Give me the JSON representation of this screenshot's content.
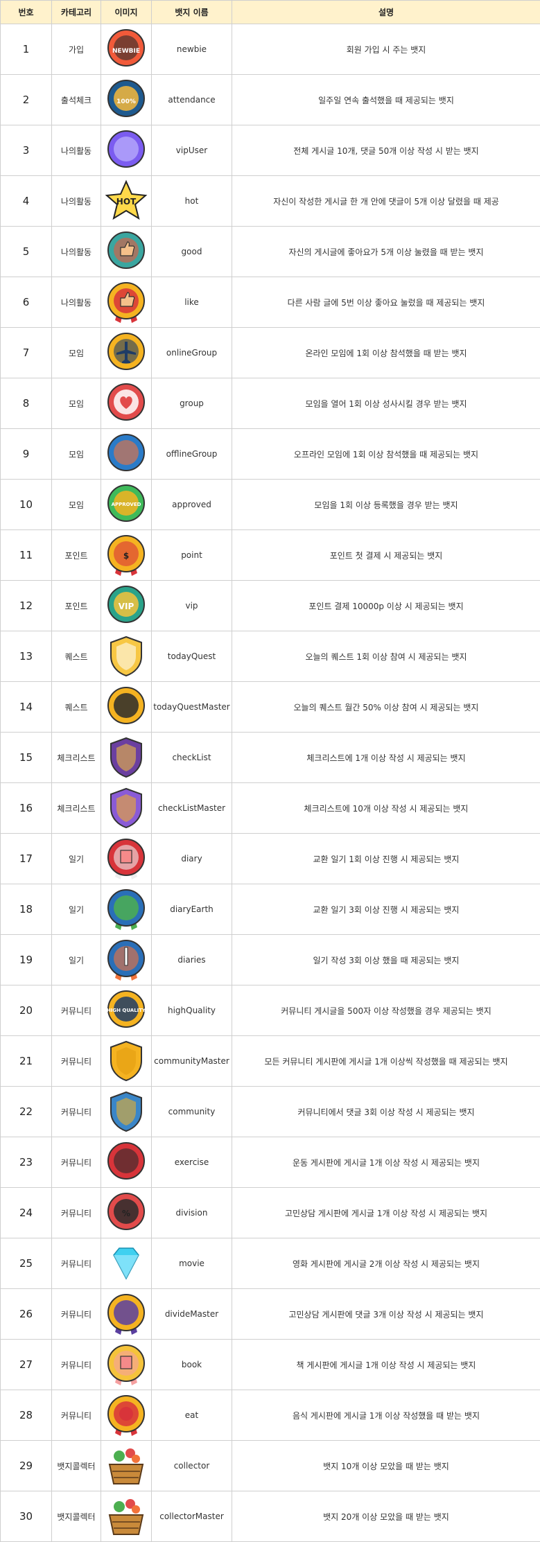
{
  "headers": [
    "번호",
    "카테고리",
    "이미지",
    "뱃지 이름",
    "설명"
  ],
  "rows": [
    {
      "no": "1",
      "category": "가입",
      "name": "newbie",
      "desc": "회원 가입 시 주는 뱃지",
      "icon": "newbie-badge-icon",
      "text": "NEWBIE",
      "colors": [
        "#f15a3a",
        "#2b2b2b"
      ]
    },
    {
      "no": "2",
      "category": "출석체크",
      "name": "attendance",
      "desc": "일주일 연속 출석했을 때 제공되는 뱃지",
      "icon": "attendance-badge-icon",
      "text": "100%",
      "colors": [
        "#1e5a8f",
        "#f6b93b"
      ]
    },
    {
      "no": "3",
      "category": "나의활동",
      "name": "vipUser",
      "desc": "전체 게시글 10개, 댓글 50개 이상 작성 시 받는 뱃지",
      "icon": "vip-gem-badge-icon",
      "text": "",
      "colors": [
        "#7b5cf0",
        "#c9c1ff"
      ]
    },
    {
      "no": "4",
      "category": "나의활동",
      "name": "hot",
      "desc": "자신이 작성한 게시글 한 개 안에 댓글이 5개 이상 달렸을 때 제공",
      "icon": "hot-star-badge-icon",
      "text": "HOT",
      "colors": [
        "#ffd94a",
        "#222222"
      ]
    },
    {
      "no": "5",
      "category": "나의활동",
      "name": "good",
      "desc": "자신의 게시글에 좋아요가 5개 이상 눌렸을 때 받는 뱃지",
      "icon": "thumbs-up-teal-badge-icon",
      "text": "",
      "colors": [
        "#3aa6a0",
        "#e8593c"
      ]
    },
    {
      "no": "6",
      "category": "나의활동",
      "name": "like",
      "desc": "다른 사람 글에 5번 이상 좋아요 눌렀을 때 제공되는 뱃지",
      "icon": "thumbs-up-gold-badge-icon",
      "text": "",
      "colors": [
        "#f5b321",
        "#d8343a"
      ]
    },
    {
      "no": "7",
      "category": "모임",
      "name": "onlineGroup",
      "desc": "온라인 모임에 1회 이상 참석했을 때 받는 뱃지",
      "icon": "airplane-badge-icon",
      "text": "",
      "colors": [
        "#f5b321",
        "#1f3c66"
      ]
    },
    {
      "no": "8",
      "category": "모임",
      "name": "group",
      "desc": "모임을 열어 1회 이상 성사시킬 경우 받는 뱃지",
      "icon": "heart-badge-icon",
      "text": "",
      "colors": [
        "#e24b4b",
        "#ffffff"
      ]
    },
    {
      "no": "9",
      "category": "모임",
      "name": "offlineGroup",
      "desc": "오프라인 모임에 1회 이상 참석했을 때 제공되는 뱃지",
      "icon": "sneaker-badge-icon",
      "text": "",
      "colors": [
        "#2a7bc8",
        "#f2733a"
      ]
    },
    {
      "no": "10",
      "category": "모임",
      "name": "approved",
      "desc": "모임을 1회 이상 등록했을 경우 받는 뱃지",
      "icon": "approved-badge-icon",
      "text": "APPROVED",
      "colors": [
        "#3fba5a",
        "#f5b321"
      ]
    },
    {
      "no": "11",
      "category": "포인트",
      "name": "point",
      "desc": "포인트 첫 결제 시 제공되는 뱃지",
      "icon": "dollar-medal-badge-icon",
      "text": "$",
      "colors": [
        "#f5b321",
        "#d8343a"
      ]
    },
    {
      "no": "12",
      "category": "포인트",
      "name": "vip",
      "desc": "포인트 결제 10000p 이상 시 제공되는 뱃지",
      "icon": "vip-crown-badge-icon",
      "text": "VIP",
      "colors": [
        "#2aa38a",
        "#f5c33b"
      ]
    },
    {
      "no": "13",
      "category": "퀘스트",
      "name": "todayQuest",
      "desc": "오늘의 퀘스트 1회 이상 참여 시 제공되는 뱃지",
      "icon": "gold-shield-star-icon",
      "text": "",
      "colors": [
        "#f7c744",
        "#ffffff"
      ]
    },
    {
      "no": "14",
      "category": "퀘스트",
      "name": "todayQuestMaster",
      "desc": "오늘의 퀘스트 월간 50% 이상 참여 시 제공되는 뱃지",
      "icon": "star-gear-badge-icon",
      "text": "",
      "colors": [
        "#f5b321",
        "#2b2b2b"
      ]
    },
    {
      "no": "15",
      "category": "체크리스트",
      "name": "checkList",
      "desc": "체크리스트에 1개 이상 작성 시 제공되는 뱃지",
      "icon": "purple-shield-badge-icon",
      "text": "",
      "colors": [
        "#6b3fa0",
        "#f5c33b"
      ]
    },
    {
      "no": "16",
      "category": "체크리스트",
      "name": "checkListMaster",
      "desc": "체크리스트에 10개 이상 작성 시 제공되는 뱃지",
      "icon": "purple-star-shield-icon",
      "text": "",
      "colors": [
        "#8a5bd6",
        "#f5b321"
      ]
    },
    {
      "no": "17",
      "category": "일기",
      "name": "diary",
      "desc": "교환 일기 1회 이상 진행 시 제공되는 뱃지",
      "icon": "diary-book-badge-icon",
      "text": "",
      "colors": [
        "#d8343a",
        "#eeeeee"
      ]
    },
    {
      "no": "18",
      "category": "일기",
      "name": "diaryEarth",
      "desc": "교환 일기 3회 이상 진행 시 제공되는 뱃지",
      "icon": "earth-laurel-badge-icon",
      "text": "",
      "colors": [
        "#2a6fb8",
        "#4caf50"
      ]
    },
    {
      "no": "19",
      "category": "일기",
      "name": "diaries",
      "desc": "일기 작성 3회 이상 했을 때 제공되는 뱃지",
      "icon": "pen-laurel-badge-icon",
      "text": "",
      "colors": [
        "#2a6fb8",
        "#f2733a"
      ]
    },
    {
      "no": "20",
      "category": "커뮤니티",
      "name": "highQuality",
      "desc": "커뮤니티 게시글을 500자 이상 작성했을 경우 제공되는 뱃지",
      "icon": "high-quality-badge-icon",
      "text": "HIGH QUALITY",
      "colors": [
        "#f5b321",
        "#1f3c66"
      ]
    },
    {
      "no": "21",
      "category": "커뮤니티",
      "name": "communityMaster",
      "desc": "모든 커뮤니티 게시판에 게시글 1개 이상씩 작성했을 때 제공되는 뱃지",
      "icon": "gold-shield-badge-icon",
      "text": "",
      "colors": [
        "#f5b321",
        "#e09a10"
      ]
    },
    {
      "no": "22",
      "category": "커뮤니티",
      "name": "community",
      "desc": "커뮤니티에서 댓글 3회 이상 작성 시 제공되는 뱃지",
      "icon": "globe-shield-badge-icon",
      "text": "",
      "colors": [
        "#3a86c8",
        "#f5b321"
      ]
    },
    {
      "no": "23",
      "category": "커뮤니티",
      "name": "exercise",
      "desc": "운동 게시판에 게시글 1개 이상 작성 시 제공되는 뱃지",
      "icon": "soccer-ball-badge-icon",
      "text": "",
      "colors": [
        "#d8343a",
        "#2b2b2b"
      ]
    },
    {
      "no": "24",
      "category": "커뮤니티",
      "name": "division",
      "desc": "고민상담 게시판에 게시글 1개 이상 작성 시 제공되는 뱃지",
      "icon": "percent-diamond-badge-icon",
      "text": "%",
      "colors": [
        "#e24b4b",
        "#2b2b2b"
      ]
    },
    {
      "no": "25",
      "category": "커뮤니티",
      "name": "movie",
      "desc": "영화 게시판에 게시글 2개 이상 작성 시 제공되는 뱃지",
      "icon": "diamond-gem-icon",
      "text": "",
      "colors": [
        "#3fd0f0",
        "#a9ecff"
      ]
    },
    {
      "no": "26",
      "category": "커뮤니티",
      "name": "divideMaster",
      "desc": "고민상담 게시판에 댓글 3개 이상 작성 시 제공되는 뱃지",
      "icon": "graduation-cap-badge-icon",
      "text": "",
      "colors": [
        "#f5b321",
        "#5a3fa0"
      ]
    },
    {
      "no": "27",
      "category": "커뮤니티",
      "name": "book",
      "desc": "책 게시판에 게시글 1개 이상 작성 시 제공되는 뱃지",
      "icon": "book-medal-badge-icon",
      "text": "",
      "colors": [
        "#f5c33b",
        "#f5a0a0"
      ]
    },
    {
      "no": "28",
      "category": "커뮤니티",
      "name": "eat",
      "desc": "음식 게시판에 게시글 1개 이상 작성했을 때 받는 뱃지",
      "icon": "food-medal-badge-icon",
      "text": "",
      "colors": [
        "#f5b321",
        "#d8343a"
      ]
    },
    {
      "no": "29",
      "category": "뱃지콜렉터",
      "name": "collector",
      "desc": "뱃지 10개 이상 모았을 때 받는 뱃지",
      "icon": "vegetable-basket-icon",
      "text": "",
      "colors": [
        "#c98a3a",
        "#4caf50"
      ]
    },
    {
      "no": "30",
      "category": "뱃지콜렉터",
      "name": "collectorMaster",
      "desc": "뱃지 20개 이상 모았을 때 받는 뱃지",
      "icon": "big-vegetable-basket-icon",
      "text": "",
      "colors": [
        "#c98a3a",
        "#3f9a45"
      ]
    }
  ]
}
